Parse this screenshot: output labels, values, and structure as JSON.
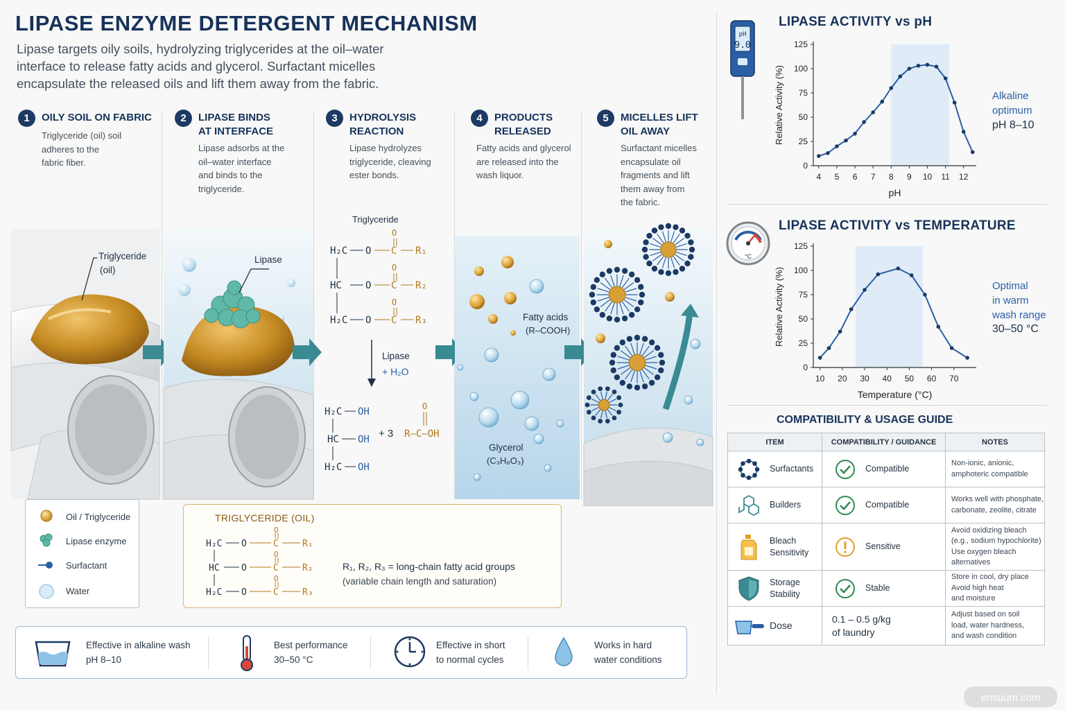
{
  "header": {
    "title": "LIPASE ENZYME DETERGENT MECHANISM",
    "subtitle": "Lipase targets oily soils, hydrolyzing triglycerides at the oil–water interface to release fatty acids and glycerol. Surfactant micelles encapsulate the released oils and lift them away from the fabric."
  },
  "steps": [
    {
      "num": "1",
      "title": "Oily soil on fabric",
      "desc": "Triglyceride (oil) soil\nadheres to the\nfabric fiber."
    },
    {
      "num": "2",
      "title": "Lipase binds\nat interface",
      "desc": "Lipase adsorbs at the\noil–water interface\nand binds to the\ntriglyceride."
    },
    {
      "num": "3",
      "title": "Hydrolysis\nreaction",
      "desc": "Lipase hydrolyzes\ntriglyceride, cleaving\nester bonds."
    },
    {
      "num": "4",
      "title": "Products\nreleased",
      "desc": "Fatty acids and glycerol\nare released into the\nwash liquor."
    },
    {
      "num": "5",
      "title": "Micelles lift\noil away",
      "desc": "Surfactant micelles\nencapsulate oil\nfragments and lift\nthem away from\nthe fabric."
    }
  ],
  "panel_labels": {
    "triglyceride": "Triglyceride",
    "oil": "(oil)",
    "lipase": "Lipase",
    "reaction_title": "Triglyceride",
    "reaction_agent": "Lipase",
    "water": "+ H₂O",
    "fatty_acids": "Fatty acids",
    "fatty_acids_formula": "(R–COOH)",
    "glycerol": "Glycerol",
    "glycerol_formula": "(C₃H₈O₃)",
    "plus_3": "+  3",
    "acid_group": "R—C—OH"
  },
  "legend": {
    "items": [
      "Oil / Triglyceride",
      "Lipase enzyme",
      "Surfactant",
      "Water"
    ]
  },
  "triglyceride_box": {
    "title": "TRIGLYCERIDE (OIL)",
    "note_line1": "R₁, R₂, R₃ = long-chain fatty acid groups",
    "note_line2": "(variable chain length and saturation)"
  },
  "bottom_bar": {
    "items": [
      {
        "text": "Effective in alkaline wash\npH 8–10",
        "icon": "basin-water-icon"
      },
      {
        "text": "Best performance\n30–50 °C",
        "icon": "thermometer-icon"
      },
      {
        "text": "Effective in short\nto normal cycles",
        "icon": "clock-icon"
      },
      {
        "text": "Works in hard\nwater conditions",
        "icon": "water-drop-icon"
      }
    ]
  },
  "ph_chart": {
    "meter_label": "pH",
    "meter_value": "9.0",
    "note": "Alkaline\noptimum",
    "note_range": "pH 8–10"
  },
  "temp_chart": {
    "dial_label": "°C",
    "note": "Optimal\nin warm\nwash range",
    "note_range": "30–50 °C"
  },
  "chart_data": [
    {
      "type": "line",
      "title": "LIPASE ACTIVITY vs pH",
      "xlabel": "pH",
      "ylabel": "Relative Activity (%)",
      "x": [
        4,
        4.5,
        5,
        5.5,
        6,
        6.5,
        7,
        7.5,
        8,
        8.5,
        9,
        9.5,
        10,
        10.5,
        11,
        11.5,
        12,
        12.5
      ],
      "series": [
        {
          "values": [
            10,
            13,
            20,
            26,
            33,
            45,
            55,
            66,
            80,
            92,
            100,
            103,
            104,
            102,
            90,
            65,
            35,
            14
          ]
        }
      ],
      "xticks": [
        "4",
        "5",
        "6",
        "7",
        "8",
        "9",
        "10",
        "11",
        "12"
      ],
      "yticks": [
        "0",
        "25",
        "50",
        "75",
        "100",
        "125"
      ],
      "xlim": [
        3.7,
        12.7
      ],
      "ylim": [
        0,
        125
      ],
      "highlight_range": [
        8,
        11.2
      ],
      "grid": false
    },
    {
      "type": "line",
      "title": "LIPASE ACTIVITY vs TEMPERATURE",
      "xlabel": "Temperature (°C)",
      "ylabel": "Relative Activity (%)",
      "x": [
        10,
        14,
        19,
        24,
        30,
        36,
        45,
        51,
        57,
        63,
        69,
        76
      ],
      "series": [
        {
          "values": [
            10,
            20,
            37,
            60,
            80,
            96,
            102,
            95,
            75,
            42,
            20,
            10
          ]
        }
      ],
      "xticks": [
        "10",
        "20",
        "30",
        "40",
        "50",
        "60",
        "70"
      ],
      "yticks": [
        "0",
        "25",
        "50",
        "75",
        "100",
        "125"
      ],
      "xlim": [
        7,
        80
      ],
      "ylim": [
        0,
        125
      ],
      "highlight_range": [
        26,
        56
      ],
      "grid": false
    }
  ],
  "table": {
    "title": "COMPATIBILITY & USAGE GUIDE",
    "headers": [
      "ITEM",
      "COMPATIBILITY / GUIDANCE",
      "NOTES"
    ],
    "rows": [
      {
        "item": "Surfactants",
        "icon": "surfactant-ring-icon",
        "status_icon": "check-circle-icon",
        "guidance": "Compatible",
        "notes": "Non-ionic, anionic,\namphoteric compatible"
      },
      {
        "item": "Builders",
        "icon": "hexagon-molecule-icon",
        "status_icon": "check-circle-icon",
        "guidance": "Compatible",
        "notes": "Works well with phosphate,\ncarbonate, zeolite, citrate"
      },
      {
        "item": "Bleach\nSensitivity",
        "icon": "bleach-bottle-icon",
        "status_icon": "warning-circle-icon",
        "guidance": "Sensitive",
        "notes": "Avoid oxidizing bleach\n(e.g., sodium hypochlorite)\nUse oxygen bleach\nalternatives"
      },
      {
        "item": "Storage\nStability",
        "icon": "shield-icon",
        "status_icon": "check-circle-icon",
        "guidance": "Stable",
        "notes": "Store in cool, dry place\nAvoid high heat\nand moisture"
      },
      {
        "item": "Dose",
        "icon": "measuring-scoop-icon",
        "status_icon": "",
        "guidance": "0.1 – 0.5 g/kg\nof laundry",
        "notes": "Adjust based on soil\nload, water hardness,\nand wash condition"
      }
    ]
  },
  "colors": {
    "navy": "#17325a",
    "accent_blue": "#2a5fa6",
    "teal": "#3a8a93",
    "oil_gold": "#c68b22",
    "enzyme_teal": "#5fb8a8",
    "check_green": "#2f8a52",
    "warn_amber": "#e0a12a"
  },
  "watermark": "ensuum.com"
}
